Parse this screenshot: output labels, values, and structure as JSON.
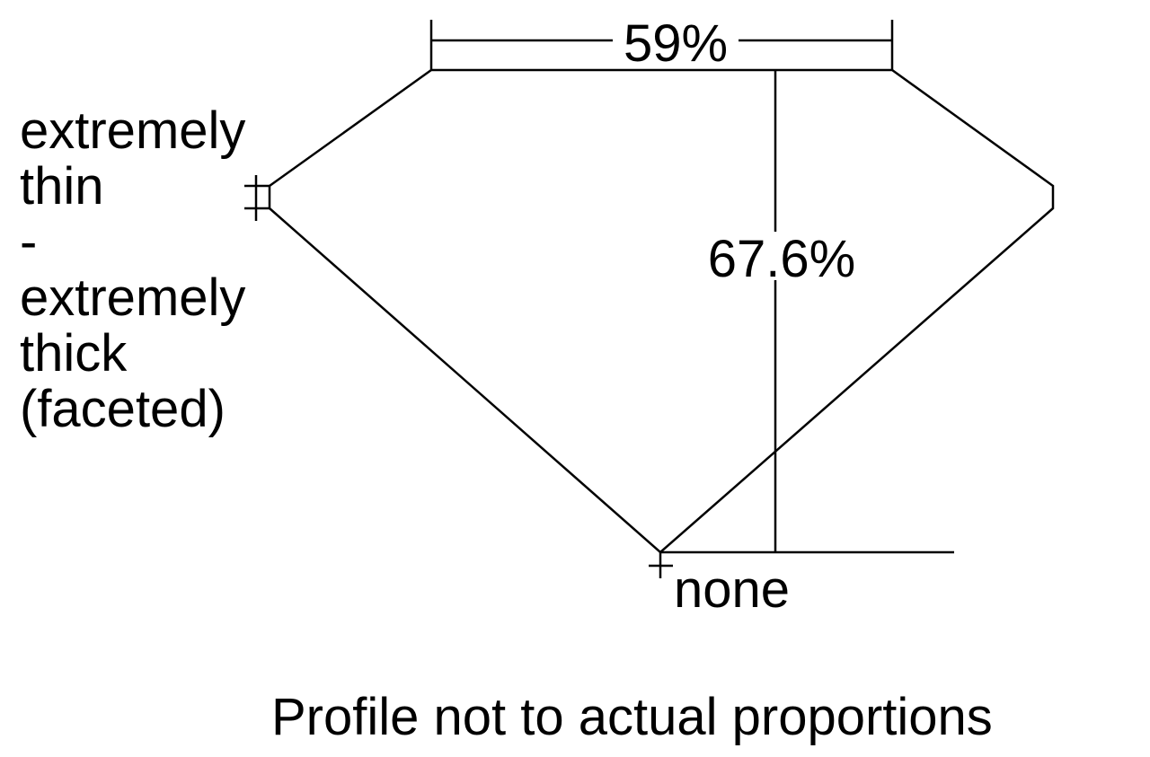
{
  "measurements": {
    "table": "59%",
    "depth": "67.6%"
  },
  "girdle": {
    "lines": [
      "extremely",
      "thin",
      "-",
      "extremely",
      "thick",
      "(faceted)"
    ]
  },
  "culet": "none",
  "footer": "Profile not to actual proportions"
}
